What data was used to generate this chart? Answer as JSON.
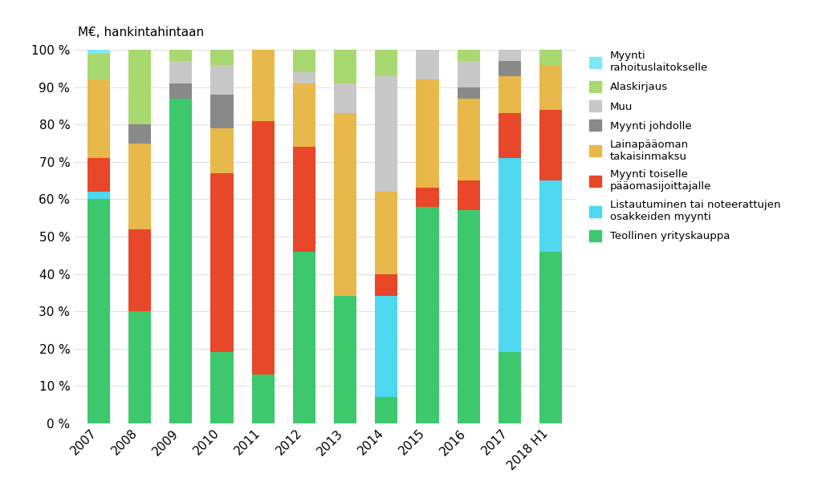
{
  "years": [
    "2007",
    "2008",
    "2009",
    "2010",
    "2011",
    "2012",
    "2013",
    "2014",
    "2015",
    "2016",
    "2017",
    "2018 H1"
  ],
  "series": [
    {
      "label": "Teollinen yrityskauppa",
      "color": "#3DC86E",
      "values": [
        60,
        30,
        87,
        19,
        13,
        46,
        34,
        7,
        58,
        57,
        19,
        46
      ]
    },
    {
      "label": "Listautuminen tai noteerattujen\nosakkeiden myynti",
      "color": "#4DD8F0",
      "values": [
        2,
        0,
        0,
        0,
        0,
        0,
        0,
        27,
        0,
        0,
        52,
        19
      ]
    },
    {
      "label": "Myynti toiselle\npääomasijoittajalle",
      "color": "#E8472A",
      "values": [
        9,
        22,
        0,
        48,
        68,
        28,
        0,
        6,
        5,
        8,
        12,
        19
      ]
    },
    {
      "label": "Lainapääoman\ntakaisinmaksu",
      "color": "#E8B94A",
      "values": [
        21,
        23,
        0,
        12,
        19,
        17,
        49,
        22,
        29,
        22,
        10,
        12
      ]
    },
    {
      "label": "Myynti johdolle",
      "color": "#898989",
      "values": [
        0,
        5,
        4,
        9,
        0,
        0,
        0,
        0,
        0,
        3,
        4,
        0
      ]
    },
    {
      "label": "Muu",
      "color": "#C8C8C8",
      "values": [
        0,
        0,
        6,
        8,
        0,
        3,
        8,
        31,
        8,
        7,
        3,
        0
      ]
    },
    {
      "label": "Alaskirjaus",
      "color": "#A8D970",
      "values": [
        7,
        20,
        3,
        4,
        0,
        6,
        9,
        7,
        0,
        3,
        0,
        4
      ]
    },
    {
      "label": "Myynti\nrahoituslaitokselle",
      "color": "#7EE8F4",
      "values": [
        1,
        0,
        0,
        0,
        0,
        0,
        0,
        0,
        0,
        0,
        0,
        0
      ]
    }
  ],
  "ylabel": "M€, hankintahintaan",
  "ylim": [
    0,
    100
  ],
  "yticks": [
    0,
    10,
    20,
    30,
    40,
    50,
    60,
    70,
    80,
    90,
    100
  ],
  "ytick_labels": [
    "0 %",
    "10 %",
    "20 %",
    "30 %",
    "40 %",
    "50 %",
    "60 %",
    "70 %",
    "80 %",
    "90 %",
    "100 %"
  ],
  "bg_color": "#FFFFFF",
  "grid_color": "#E0E0E0"
}
